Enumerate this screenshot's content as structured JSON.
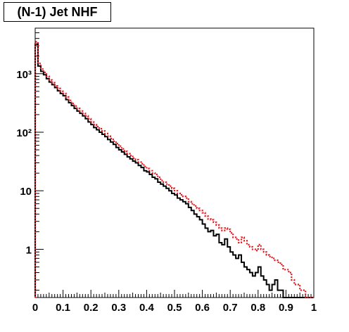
{
  "title": "(N-1) Jet NHF",
  "chart_data": {
    "type": "histogram",
    "title": "(N-1) Jet NHF",
    "xlabel": "",
    "ylabel": "",
    "xlim": [
      0,
      1
    ],
    "ylim": [
      0.15,
      6000
    ],
    "yscale": "log",
    "grid": false,
    "legend": "none",
    "x_ticks": [
      {
        "value": 0,
        "label": "0"
      },
      {
        "value": 0.1,
        "label": "0.1"
      },
      {
        "value": 0.2,
        "label": "0.2"
      },
      {
        "value": 0.3,
        "label": "0.3"
      },
      {
        "value": 0.4,
        "label": "0.4"
      },
      {
        "value": 0.5,
        "label": "0.5"
      },
      {
        "value": 0.6,
        "label": "0.6"
      },
      {
        "value": 0.7,
        "label": "0.7"
      },
      {
        "value": 0.8,
        "label": "0.8"
      },
      {
        "value": 0.9,
        "label": "0.9"
      },
      {
        "value": 1,
        "label": "1"
      }
    ],
    "y_ticks": [
      {
        "value": 1,
        "label": "1"
      },
      {
        "value": 10,
        "label": "10"
      },
      {
        "value": 100,
        "label": "10²"
      },
      {
        "value": 1000,
        "label": "10³"
      }
    ],
    "bin_width": 0.01,
    "series": [
      {
        "color": "#000000",
        "style": "solid",
        "values": [
          3200,
          1350,
          1100,
          960,
          820,
          720,
          650,
          580,
          510,
          460,
          420,
          360,
          320,
          285,
          255,
          230,
          210,
          190,
          170,
          150,
          135,
          120,
          110,
          100,
          92,
          84,
          75,
          68,
          62,
          55,
          50,
          46,
          42,
          38,
          35,
          32,
          30,
          27,
          25,
          22,
          21,
          19,
          17,
          16,
          14,
          13,
          12,
          11,
          10,
          9,
          8.5,
          7.5,
          7,
          6.5,
          6,
          5.2,
          4.6,
          4,
          3.6,
          3.2,
          2.7,
          2.3,
          2,
          2.1,
          1.7,
          1.8,
          1.3,
          1.2,
          1.5,
          1.1,
          0.9,
          0.8,
          0.7,
          0.8,
          0.6,
          0.5,
          0.45,
          0.4,
          0.35,
          0.4,
          0.5,
          0.35,
          0.3,
          0.25,
          0.2,
          0.25,
          0.3,
          0.2,
          0.2,
          0.15,
          0.15,
          0.15,
          0.15,
          0.15,
          0.15,
          0.15,
          0.15,
          0.15,
          0.15,
          0.15
        ]
      },
      {
        "color": "#e8141c",
        "style": "dotted",
        "values": [
          3500,
          1500,
          1200,
          1050,
          900,
          780,
          700,
          620,
          560,
          500,
          460,
          400,
          350,
          310,
          280,
          255,
          230,
          210,
          190,
          170,
          150,
          135,
          125,
          115,
          105,
          95,
          86,
          78,
          70,
          64,
          58,
          52,
          47,
          43,
          40,
          36,
          34,
          31,
          29,
          26,
          24,
          22,
          20,
          19,
          17,
          15,
          14,
          13,
          12,
          11,
          10,
          9,
          8.5,
          8,
          7.5,
          6.5,
          6,
          5.5,
          5,
          4.6,
          4.2,
          3.7,
          3.3,
          3.2,
          2.9,
          2.6,
          2.3,
          2.1,
          2.3,
          2.2,
          1.9,
          1.6,
          1.5,
          1.3,
          1.6,
          1.4,
          1.2,
          1.1,
          1,
          0.95,
          1.2,
          1,
          0.9,
          0.8,
          0.75,
          0.7,
          0.65,
          0.6,
          0.55,
          0.45,
          0.45,
          0.4,
          0.3,
          0.25,
          0.25,
          0.2,
          0.2,
          0.15,
          0.15,
          0.15
        ]
      }
    ]
  }
}
